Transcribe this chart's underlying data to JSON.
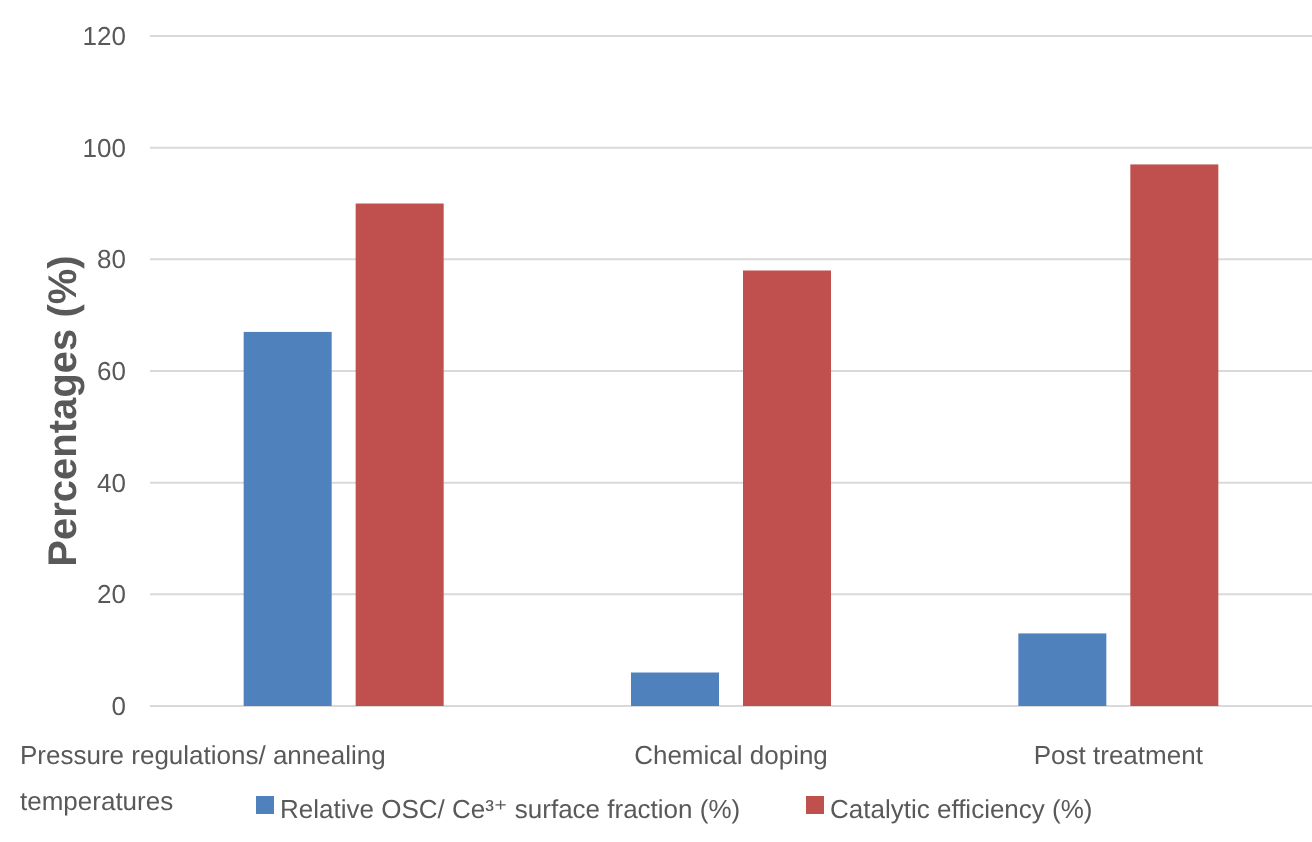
{
  "chart_data": {
    "type": "bar",
    "ylabel": "Percentages (%)",
    "categories": [
      "Pressure regulations/ annealing temperatures",
      "Chemical doping",
      "Post treatment"
    ],
    "series": [
      {
        "name": "Relative OSC/ Ce³⁺ surface fraction (%)",
        "color": "#4f81bd",
        "values": [
          67,
          6,
          13
        ]
      },
      {
        "name": "Catalytic efficiency (%)",
        "color": "#c0504d",
        "values": [
          90,
          78,
          97
        ]
      }
    ],
    "ylim": [
      0,
      120
    ],
    "yticks": [
      0,
      20,
      40,
      60,
      80,
      100,
      120
    ],
    "grid": "y",
    "legend": "bottom"
  }
}
